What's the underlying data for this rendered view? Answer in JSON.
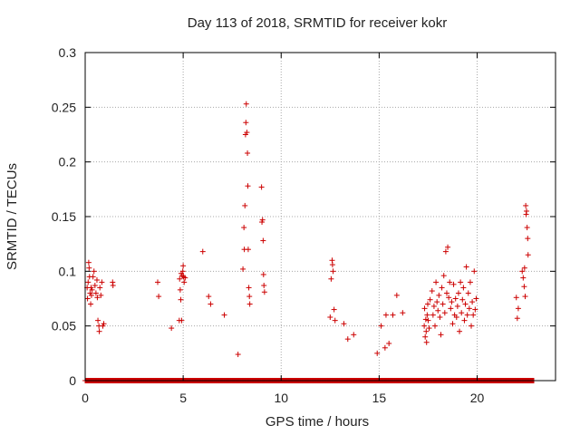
{
  "chart_data": {
    "type": "scatter",
    "title": "Day 113 of 2018, SRMTID for receiver kokr",
    "xlabel": "GPS time / hours",
    "ylabel": "SRMTID / TECUs",
    "xlim": [
      0,
      24
    ],
    "ylim": [
      0,
      0.3
    ],
    "x_ticks": [
      "0",
      "5",
      "10",
      "15",
      "20"
    ],
    "x_tick_values": [
      0,
      5,
      10,
      15,
      20
    ],
    "y_ticks": [
      "0",
      "0.05",
      "0.1",
      "0.15",
      "0.2",
      "0.25",
      "0.3"
    ],
    "y_tick_values": [
      0,
      0.05,
      0.1,
      0.15,
      0.2,
      0.25,
      0.3
    ],
    "grid": true,
    "marker": "+",
    "color": "#cc0000",
    "zero_band": {
      "y": 0,
      "x_ranges": [
        [
          0,
          8.0
        ],
        [
          8.0,
          12.6
        ],
        [
          12.6,
          22.9
        ]
      ]
    },
    "series": [
      {
        "name": "SRMTID",
        "x": [
          0.1,
          0.12,
          0.15,
          0.18,
          0.2,
          0.22,
          0.25,
          0.28,
          0.3,
          0.32,
          0.35,
          0.4,
          0.45,
          0.5,
          0.55,
          0.6,
          0.62,
          0.65,
          0.7,
          0.72,
          0.75,
          0.8,
          0.85,
          0.9,
          0.95,
          1.4,
          1.42,
          3.7,
          3.75,
          4.4,
          4.8,
          4.82,
          4.85,
          4.88,
          4.9,
          4.92,
          4.95,
          4.98,
          5.0,
          5.02,
          5.05,
          5.1,
          6.0,
          6.3,
          6.4,
          7.1,
          7.8,
          8.05,
          8.1,
          8.12,
          8.15,
          8.18,
          8.2,
          8.22,
          8.25,
          8.28,
          8.3,
          8.32,
          8.35,
          8.38,
          8.4,
          9.0,
          9.02,
          9.05,
          9.08,
          9.1,
          9.12,
          9.15,
          12.5,
          12.55,
          12.6,
          12.62,
          12.65,
          12.7,
          12.75,
          13.2,
          13.4,
          13.7,
          14.9,
          15.1,
          15.3,
          15.35,
          15.5,
          15.7,
          15.9,
          16.2,
          17.3,
          17.32,
          17.35,
          17.38,
          17.4,
          17.42,
          17.45,
          17.48,
          17.5,
          17.55,
          17.6,
          17.7,
          17.75,
          17.8,
          17.85,
          17.9,
          17.95,
          18.0,
          18.05,
          18.1,
          18.15,
          18.2,
          18.25,
          18.3,
          18.35,
          18.4,
          18.45,
          18.5,
          18.55,
          18.6,
          18.65,
          18.7,
          18.75,
          18.8,
          18.85,
          18.9,
          18.95,
          19.0,
          19.05,
          19.1,
          19.15,
          19.2,
          19.25,
          19.3,
          19.35,
          19.4,
          19.45,
          19.5,
          19.55,
          19.6,
          19.65,
          19.7,
          19.75,
          19.8,
          19.85,
          19.9,
          19.95,
          22.0,
          22.05,
          22.1,
          22.3,
          22.35,
          22.4,
          22.42,
          22.45,
          22.48,
          22.5,
          22.52,
          22.55,
          22.58,
          22.6
        ],
        "y": [
          0.085,
          0.075,
          0.09,
          0.108,
          0.103,
          0.095,
          0.08,
          0.07,
          0.085,
          0.078,
          0.083,
          0.095,
          0.1,
          0.087,
          0.08,
          0.092,
          0.076,
          0.055,
          0.05,
          0.045,
          0.085,
          0.078,
          0.09,
          0.05,
          0.052,
          0.09,
          0.087,
          0.09,
          0.077,
          0.048,
          0.055,
          0.093,
          0.083,
          0.074,
          0.098,
          0.055,
          0.096,
          0.1,
          0.105,
          0.095,
          0.09,
          0.094,
          0.118,
          0.077,
          0.07,
          0.06,
          0.024,
          0.102,
          0.14,
          0.12,
          0.16,
          0.225,
          0.236,
          0.253,
          0.227,
          0.208,
          0.178,
          0.12,
          0.085,
          0.077,
          0.07,
          0.177,
          0.145,
          0.147,
          0.128,
          0.097,
          0.087,
          0.081,
          0.058,
          0.093,
          0.11,
          0.106,
          0.1,
          0.065,
          0.055,
          0.052,
          0.038,
          0.042,
          0.025,
          0.05,
          0.03,
          0.06,
          0.034,
          0.06,
          0.078,
          0.062,
          0.05,
          0.066,
          0.04,
          0.056,
          0.045,
          0.035,
          0.06,
          0.07,
          0.055,
          0.048,
          0.074,
          0.082,
          0.06,
          0.068,
          0.05,
          0.09,
          0.072,
          0.064,
          0.078,
          0.058,
          0.042,
          0.085,
          0.07,
          0.096,
          0.062,
          0.118,
          0.08,
          0.122,
          0.076,
          0.09,
          0.066,
          0.072,
          0.052,
          0.088,
          0.06,
          0.075,
          0.058,
          0.068,
          0.08,
          0.045,
          0.09,
          0.062,
          0.074,
          0.085,
          0.055,
          0.07,
          0.104,
          0.06,
          0.08,
          0.066,
          0.09,
          0.05,
          0.072,
          0.06,
          0.1,
          0.065,
          0.075,
          0.076,
          0.057,
          0.066,
          0.1,
          0.094,
          0.086,
          0.103,
          0.077,
          0.16,
          0.152,
          0.155,
          0.14,
          0.13,
          0.115
        ]
      }
    ]
  }
}
